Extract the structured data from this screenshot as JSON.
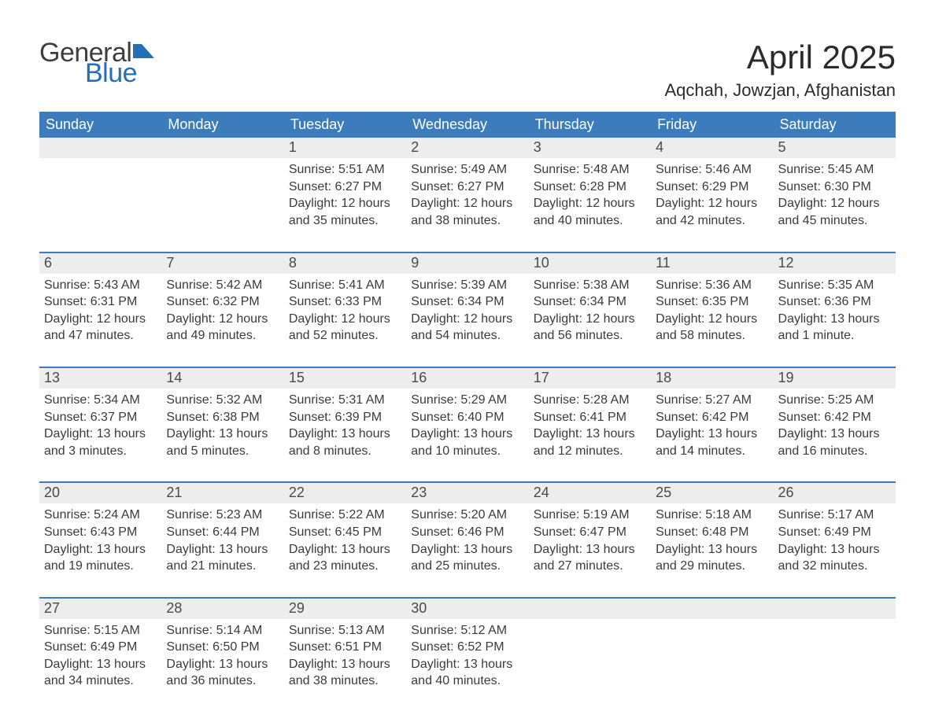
{
  "brand": {
    "word1": "General",
    "word2": "Blue",
    "flag_color": "#246fb5"
  },
  "title": "April 2025",
  "location": "Aqchah, Jowzjan, Afghanistan",
  "colors": {
    "header_bg": "#3c7cbc",
    "header_text": "#ffffff",
    "date_bg": "#ededed",
    "text": "#3b3b3b",
    "rule": "#3c7cbc"
  },
  "daynames": [
    "Sunday",
    "Monday",
    "Tuesday",
    "Wednesday",
    "Thursday",
    "Friday",
    "Saturday"
  ],
  "weeks": [
    [
      {
        "date": "",
        "sunrise": "",
        "sunset": "",
        "daylight": ""
      },
      {
        "date": "",
        "sunrise": "",
        "sunset": "",
        "daylight": ""
      },
      {
        "date": "1",
        "sunrise": "Sunrise: 5:51 AM",
        "sunset": "Sunset: 6:27 PM",
        "daylight": "Daylight: 12 hours and 35 minutes."
      },
      {
        "date": "2",
        "sunrise": "Sunrise: 5:49 AM",
        "sunset": "Sunset: 6:27 PM",
        "daylight": "Daylight: 12 hours and 38 minutes."
      },
      {
        "date": "3",
        "sunrise": "Sunrise: 5:48 AM",
        "sunset": "Sunset: 6:28 PM",
        "daylight": "Daylight: 12 hours and 40 minutes."
      },
      {
        "date": "4",
        "sunrise": "Sunrise: 5:46 AM",
        "sunset": "Sunset: 6:29 PM",
        "daylight": "Daylight: 12 hours and 42 minutes."
      },
      {
        "date": "5",
        "sunrise": "Sunrise: 5:45 AM",
        "sunset": "Sunset: 6:30 PM",
        "daylight": "Daylight: 12 hours and 45 minutes."
      }
    ],
    [
      {
        "date": "6",
        "sunrise": "Sunrise: 5:43 AM",
        "sunset": "Sunset: 6:31 PM",
        "daylight": "Daylight: 12 hours and 47 minutes."
      },
      {
        "date": "7",
        "sunrise": "Sunrise: 5:42 AM",
        "sunset": "Sunset: 6:32 PM",
        "daylight": "Daylight: 12 hours and 49 minutes."
      },
      {
        "date": "8",
        "sunrise": "Sunrise: 5:41 AM",
        "sunset": "Sunset: 6:33 PM",
        "daylight": "Daylight: 12 hours and 52 minutes."
      },
      {
        "date": "9",
        "sunrise": "Sunrise: 5:39 AM",
        "sunset": "Sunset: 6:34 PM",
        "daylight": "Daylight: 12 hours and 54 minutes."
      },
      {
        "date": "10",
        "sunrise": "Sunrise: 5:38 AM",
        "sunset": "Sunset: 6:34 PM",
        "daylight": "Daylight: 12 hours and 56 minutes."
      },
      {
        "date": "11",
        "sunrise": "Sunrise: 5:36 AM",
        "sunset": "Sunset: 6:35 PM",
        "daylight": "Daylight: 12 hours and 58 minutes."
      },
      {
        "date": "12",
        "sunrise": "Sunrise: 5:35 AM",
        "sunset": "Sunset: 6:36 PM",
        "daylight": "Daylight: 13 hours and 1 minute."
      }
    ],
    [
      {
        "date": "13",
        "sunrise": "Sunrise: 5:34 AM",
        "sunset": "Sunset: 6:37 PM",
        "daylight": "Daylight: 13 hours and 3 minutes."
      },
      {
        "date": "14",
        "sunrise": "Sunrise: 5:32 AM",
        "sunset": "Sunset: 6:38 PM",
        "daylight": "Daylight: 13 hours and 5 minutes."
      },
      {
        "date": "15",
        "sunrise": "Sunrise: 5:31 AM",
        "sunset": "Sunset: 6:39 PM",
        "daylight": "Daylight: 13 hours and 8 minutes."
      },
      {
        "date": "16",
        "sunrise": "Sunrise: 5:29 AM",
        "sunset": "Sunset: 6:40 PM",
        "daylight": "Daylight: 13 hours and 10 minutes."
      },
      {
        "date": "17",
        "sunrise": "Sunrise: 5:28 AM",
        "sunset": "Sunset: 6:41 PM",
        "daylight": "Daylight: 13 hours and 12 minutes."
      },
      {
        "date": "18",
        "sunrise": "Sunrise: 5:27 AM",
        "sunset": "Sunset: 6:42 PM",
        "daylight": "Daylight: 13 hours and 14 minutes."
      },
      {
        "date": "19",
        "sunrise": "Sunrise: 5:25 AM",
        "sunset": "Sunset: 6:42 PM",
        "daylight": "Daylight: 13 hours and 16 minutes."
      }
    ],
    [
      {
        "date": "20",
        "sunrise": "Sunrise: 5:24 AM",
        "sunset": "Sunset: 6:43 PM",
        "daylight": "Daylight: 13 hours and 19 minutes."
      },
      {
        "date": "21",
        "sunrise": "Sunrise: 5:23 AM",
        "sunset": "Sunset: 6:44 PM",
        "daylight": "Daylight: 13 hours and 21 minutes."
      },
      {
        "date": "22",
        "sunrise": "Sunrise: 5:22 AM",
        "sunset": "Sunset: 6:45 PM",
        "daylight": "Daylight: 13 hours and 23 minutes."
      },
      {
        "date": "23",
        "sunrise": "Sunrise: 5:20 AM",
        "sunset": "Sunset: 6:46 PM",
        "daylight": "Daylight: 13 hours and 25 minutes."
      },
      {
        "date": "24",
        "sunrise": "Sunrise: 5:19 AM",
        "sunset": "Sunset: 6:47 PM",
        "daylight": "Daylight: 13 hours and 27 minutes."
      },
      {
        "date": "25",
        "sunrise": "Sunrise: 5:18 AM",
        "sunset": "Sunset: 6:48 PM",
        "daylight": "Daylight: 13 hours and 29 minutes."
      },
      {
        "date": "26",
        "sunrise": "Sunrise: 5:17 AM",
        "sunset": "Sunset: 6:49 PM",
        "daylight": "Daylight: 13 hours and 32 minutes."
      }
    ],
    [
      {
        "date": "27",
        "sunrise": "Sunrise: 5:15 AM",
        "sunset": "Sunset: 6:49 PM",
        "daylight": "Daylight: 13 hours and 34 minutes."
      },
      {
        "date": "28",
        "sunrise": "Sunrise: 5:14 AM",
        "sunset": "Sunset: 6:50 PM",
        "daylight": "Daylight: 13 hours and 36 minutes."
      },
      {
        "date": "29",
        "sunrise": "Sunrise: 5:13 AM",
        "sunset": "Sunset: 6:51 PM",
        "daylight": "Daylight: 13 hours and 38 minutes."
      },
      {
        "date": "30",
        "sunrise": "Sunrise: 5:12 AM",
        "sunset": "Sunset: 6:52 PM",
        "daylight": "Daylight: 13 hours and 40 minutes."
      },
      {
        "date": "",
        "sunrise": "",
        "sunset": "",
        "daylight": ""
      },
      {
        "date": "",
        "sunrise": "",
        "sunset": "",
        "daylight": ""
      },
      {
        "date": "",
        "sunrise": "",
        "sunset": "",
        "daylight": ""
      }
    ]
  ]
}
